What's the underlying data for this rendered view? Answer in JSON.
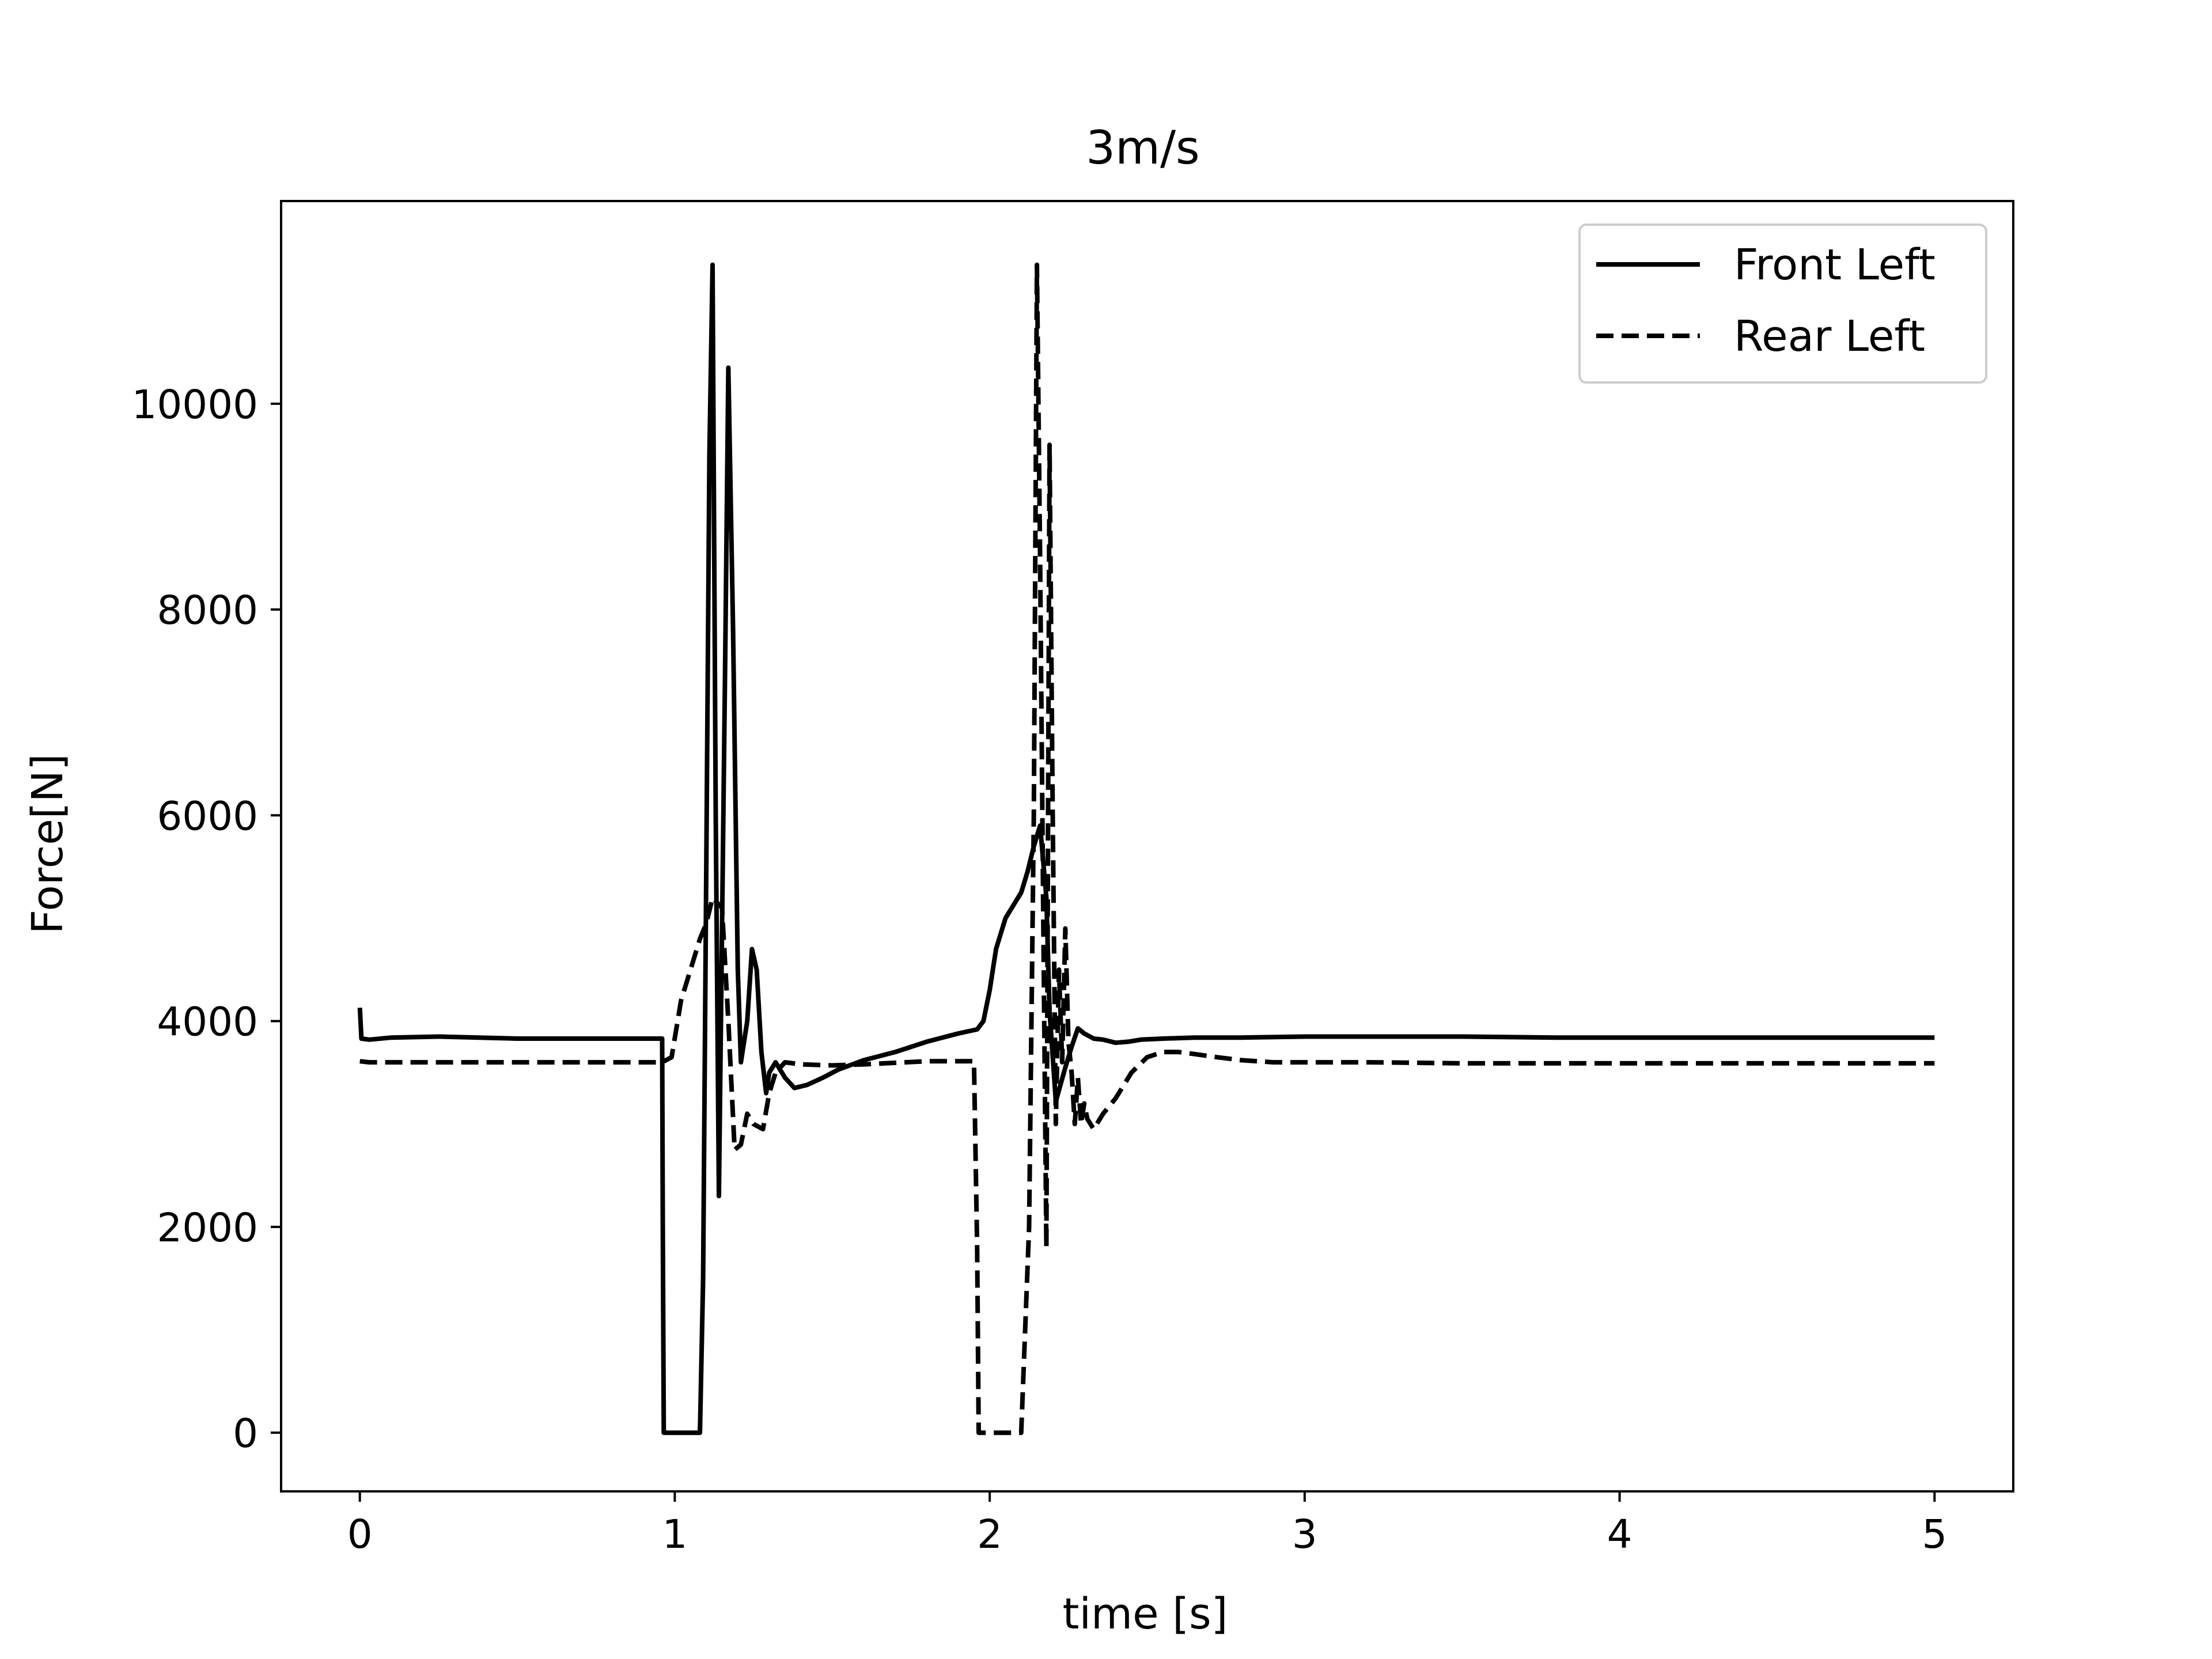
{
  "chart_data": {
    "type": "line",
    "title": "3m/s",
    "xlabel": "time [s]",
    "ylabel": "Force[N]",
    "xlim": [
      -0.25,
      5.25
    ],
    "ylim": [
      -570,
      11970
    ],
    "xticks": [
      0,
      1,
      2,
      3,
      4,
      5
    ],
    "yticks": [
      0,
      2000,
      4000,
      6000,
      8000,
      10000
    ],
    "grid": false,
    "legend_position": "top-right",
    "line_color": "#000000",
    "series": [
      {
        "name": "Front Left",
        "style": "solid",
        "x": [
          0,
          0.005,
          0.03,
          0.1,
          0.25,
          0.5,
          0.75,
          0.96,
          0.962,
          0.965,
          1.0,
          1.05,
          1.08,
          1.09,
          1.1,
          1.11,
          1.12,
          1.13,
          1.14,
          1.16,
          1.17,
          1.185,
          1.2,
          1.21,
          1.23,
          1.245,
          1.26,
          1.275,
          1.29,
          1.3,
          1.32,
          1.35,
          1.38,
          1.42,
          1.47,
          1.52,
          1.6,
          1.7,
          1.8,
          1.9,
          1.96,
          1.98,
          2.0,
          2.02,
          2.05,
          2.08,
          2.1,
          2.12,
          2.14,
          2.16,
          2.18,
          2.19,
          2.21,
          2.24,
          2.26,
          2.28,
          2.3,
          2.33,
          2.36,
          2.4,
          2.44,
          2.48,
          2.55,
          2.65,
          2.8,
          3.0,
          3.3,
          3.5,
          3.8,
          4.2,
          4.6,
          5.0
        ],
        "y": [
          4130,
          3830,
          3820,
          3840,
          3850,
          3830,
          3830,
          3830,
          2000,
          0,
          0,
          0,
          0,
          1500,
          5500,
          9500,
          11350,
          6000,
          2300,
          7500,
          10350,
          7800,
          4500,
          3600,
          4000,
          4700,
          4500,
          3700,
          3300,
          3500,
          3600,
          3450,
          3350,
          3380,
          3450,
          3530,
          3620,
          3700,
          3800,
          3880,
          3920,
          4000,
          4300,
          4700,
          5000,
          5150,
          5250,
          5450,
          5700,
          5900,
          5200,
          4100,
          3220,
          3550,
          3750,
          3930,
          3880,
          3830,
          3820,
          3790,
          3800,
          3820,
          3830,
          3840,
          3840,
          3850,
          3850,
          3850,
          3840,
          3840,
          3840,
          3840
        ]
      },
      {
        "name": "Rear Left",
        "style": "dashed",
        "x": [
          0,
          0.03,
          0.1,
          0.3,
          0.6,
          0.9,
          0.96,
          0.99,
          1.02,
          1.05,
          1.08,
          1.1,
          1.12,
          1.15,
          1.17,
          1.19,
          1.21,
          1.23,
          1.25,
          1.28,
          1.3,
          1.32,
          1.35,
          1.4,
          1.5,
          1.6,
          1.8,
          1.95,
          1.96,
          1.965,
          2.0,
          2.1,
          2.125,
          2.14,
          2.15,
          2.16,
          2.17,
          2.18,
          2.19,
          2.2,
          2.21,
          2.22,
          2.23,
          2.24,
          2.25,
          2.26,
          2.27,
          2.28,
          2.29,
          2.3,
          2.31,
          2.32,
          2.33,
          2.34,
          2.36,
          2.4,
          2.45,
          2.5,
          2.55,
          2.6,
          2.65,
          2.72,
          2.8,
          2.9,
          3.0,
          3.2,
          3.5,
          4.0,
          4.5,
          5.0
        ],
        "y": [
          3610,
          3600,
          3600,
          3600,
          3600,
          3600,
          3600,
          3650,
          4200,
          4500,
          4800,
          4950,
          5200,
          5100,
          4000,
          2750,
          2800,
          3100,
          3000,
          2950,
          3300,
          3500,
          3600,
          3580,
          3570,
          3580,
          3610,
          3610,
          1800,
          0,
          0,
          0,
          2000,
          6000,
          11350,
          8500,
          5000,
          1800,
          9600,
          6000,
          3000,
          4500,
          3600,
          4900,
          3800,
          3500,
          3000,
          3450,
          3000,
          3200,
          3050,
          3000,
          2950,
          3000,
          3100,
          3250,
          3500,
          3650,
          3700,
          3700,
          3680,
          3650,
          3620,
          3600,
          3600,
          3600,
          3590,
          3590,
          3590,
          3590
        ]
      }
    ]
  }
}
